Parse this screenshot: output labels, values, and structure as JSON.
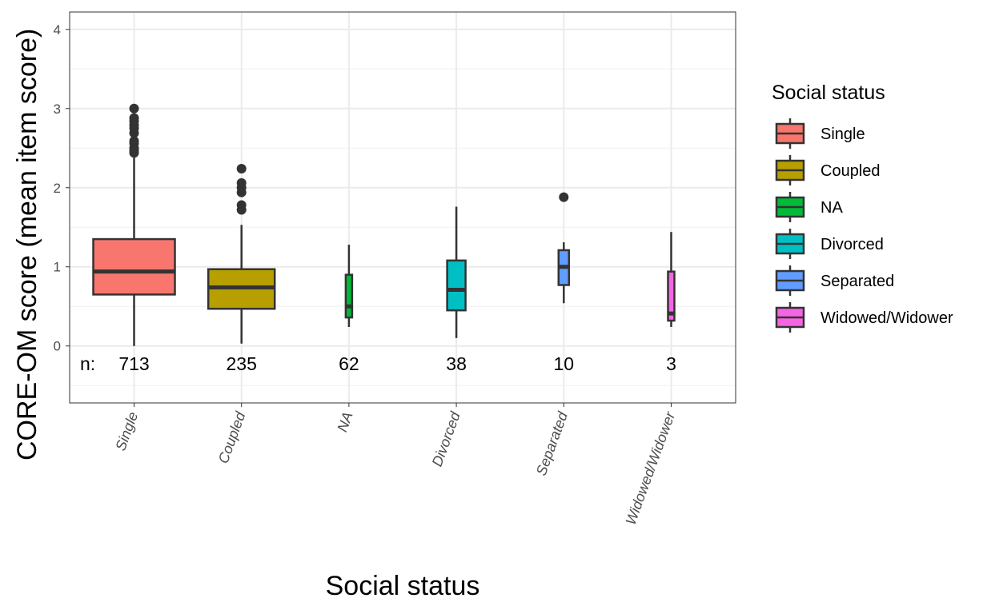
{
  "chart_data": {
    "type": "boxplot",
    "title": "",
    "xlabel": "Social status",
    "ylabel": "CORE-OM score (mean item score)",
    "ylim": [
      -0.72,
      4.22
    ],
    "yticks": [
      0,
      1,
      2,
      3,
      4
    ],
    "grid": true,
    "legend_position": "right",
    "legend_title": "Social status",
    "n_prefix": "n:",
    "categories": [
      "Single",
      "Coupled",
      "NA",
      "Divorced",
      "Separated",
      "Widowed/Widower"
    ],
    "colors": [
      "#F8766D",
      "#B79F00",
      "#00BA38",
      "#00BFC4",
      "#619CFF",
      "#F564E3"
    ],
    "n": [
      713,
      235,
      62,
      38,
      10,
      3
    ],
    "boxes": [
      {
        "low": 0.0,
        "q1": 0.65,
        "median": 0.94,
        "q3": 1.35,
        "high": 2.38,
        "outliers": [
          2.44,
          2.47,
          2.5,
          2.56,
          2.59,
          2.69,
          2.75,
          2.79,
          2.84,
          2.88,
          3.0
        ]
      },
      {
        "low": 0.03,
        "q1": 0.47,
        "median": 0.74,
        "q3": 0.97,
        "high": 1.53,
        "outliers": [
          1.72,
          1.78,
          1.94,
          2.0,
          2.06,
          2.24
        ]
      },
      {
        "low": 0.24,
        "q1": 0.36,
        "median": 0.5,
        "q3": 0.9,
        "high": 1.28,
        "outliers": []
      },
      {
        "low": 0.1,
        "q1": 0.45,
        "median": 0.71,
        "q3": 1.08,
        "high": 1.76,
        "outliers": []
      },
      {
        "low": 0.54,
        "q1": 0.77,
        "median": 1.0,
        "q3": 1.21,
        "high": 1.31,
        "outliers": [
          1.88
        ]
      },
      {
        "low": 0.24,
        "q1": 0.32,
        "median": 0.41,
        "q3": 0.94,
        "high": 1.44,
        "outliers": []
      }
    ]
  }
}
